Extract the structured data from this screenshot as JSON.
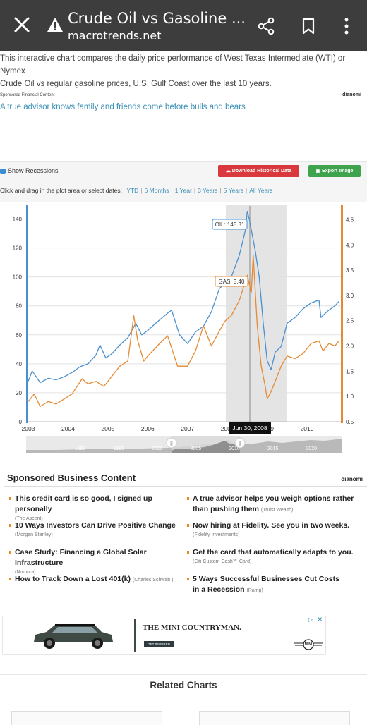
{
  "browser": {
    "title": "Crude Oil vs Gasoline ...",
    "domain": "macrotrends.net"
  },
  "intro": {
    "line1": "This interactive chart compares the daily price performance of West Texas Intermediate (WTI) or Nymex",
    "line2": "Crude Oil vs regular gasoline prices, U.S. Gulf Coast over the last 10 years."
  },
  "top_sponsor": {
    "label": "Sponsored Financial Content",
    "brand": "dianomi",
    "link": "A true advisor knows family and friends come before bulls and bears"
  },
  "toolbar": {
    "show_recessions": "Show Recessions",
    "download_label": "Download Historical Data",
    "export_label": "Export Image",
    "zoom_prompt": "Click and drag in the plot area or select dates:",
    "zoom_options": [
      "YTD",
      "6 Months",
      "1 Year",
      "3 Years",
      "5 Years",
      "All Years"
    ]
  },
  "chart_data": {
    "type": "line",
    "title": "",
    "x_ticks": [
      "2003",
      "2004",
      "2005",
      "2006",
      "2007",
      "2008",
      "2009",
      "2010"
    ],
    "y_left_ticks": [
      "0",
      "20",
      "40",
      "60",
      "80",
      "100",
      "120",
      "140"
    ],
    "y_right_ticks": [
      "0.5",
      "1.0",
      "1.5",
      "2.0",
      "2.5",
      "3.0",
      "3.5",
      "4.0",
      "4.5"
    ],
    "y_left_range": [
      0,
      150
    ],
    "y_right_range": [
      0.5,
      4.8
    ],
    "x_range": [
      2003.0,
      2010.85
    ],
    "recession_band": [
      2007.96,
      2009.5
    ],
    "series": [
      {
        "name": "Oil",
        "axis": "left",
        "color": "#4a90d0",
        "points": [
          [
            2003.0,
            28
          ],
          [
            2003.1,
            35
          ],
          [
            2003.2,
            31
          ],
          [
            2003.3,
            27
          ],
          [
            2003.5,
            30
          ],
          [
            2003.7,
            29
          ],
          [
            2003.9,
            31
          ],
          [
            2004.1,
            34
          ],
          [
            2004.3,
            38
          ],
          [
            2004.5,
            40
          ],
          [
            2004.7,
            46
          ],
          [
            2004.8,
            53
          ],
          [
            2004.95,
            44
          ],
          [
            2005.1,
            47
          ],
          [
            2005.3,
            53
          ],
          [
            2005.5,
            58
          ],
          [
            2005.7,
            68
          ],
          [
            2005.85,
            60
          ],
          [
            2006.0,
            63
          ],
          [
            2006.2,
            68
          ],
          [
            2006.5,
            75
          ],
          [
            2006.6,
            77
          ],
          [
            2006.8,
            60
          ],
          [
            2007.0,
            54
          ],
          [
            2007.2,
            62
          ],
          [
            2007.4,
            66
          ],
          [
            2007.6,
            76
          ],
          [
            2007.8,
            92
          ],
          [
            2007.95,
            96
          ],
          [
            2008.1,
            100
          ],
          [
            2008.3,
            115
          ],
          [
            2008.45,
            132
          ],
          [
            2008.5,
            145.31
          ],
          [
            2008.55,
            140
          ],
          [
            2008.7,
            118
          ],
          [
            2008.8,
            100
          ],
          [
            2008.9,
            68
          ],
          [
            2009.0,
            42
          ],
          [
            2009.1,
            36
          ],
          [
            2009.2,
            48
          ],
          [
            2009.35,
            52
          ],
          [
            2009.5,
            68
          ],
          [
            2009.7,
            72
          ],
          [
            2009.9,
            78
          ],
          [
            2010.1,
            82
          ],
          [
            2010.3,
            84
          ],
          [
            2010.35,
            72
          ],
          [
            2010.5,
            76
          ],
          [
            2010.7,
            80
          ],
          [
            2010.8,
            83
          ]
        ]
      },
      {
        "name": "Gas",
        "axis": "right",
        "color": "#e58a34",
        "points": [
          [
            2003.0,
            0.9
          ],
          [
            2003.15,
            1.05
          ],
          [
            2003.3,
            0.8
          ],
          [
            2003.5,
            0.9
          ],
          [
            2003.7,
            0.85
          ],
          [
            2003.9,
            0.95
          ],
          [
            2004.1,
            1.05
          ],
          [
            2004.35,
            1.35
          ],
          [
            2004.5,
            1.25
          ],
          [
            2004.7,
            1.3
          ],
          [
            2004.9,
            1.2
          ],
          [
            2005.1,
            1.4
          ],
          [
            2005.3,
            1.6
          ],
          [
            2005.5,
            1.7
          ],
          [
            2005.65,
            2.6
          ],
          [
            2005.75,
            2.1
          ],
          [
            2005.9,
            1.7
          ],
          [
            2006.0,
            1.8
          ],
          [
            2006.3,
            2.05
          ],
          [
            2006.5,
            2.2
          ],
          [
            2006.75,
            1.6
          ],
          [
            2007.0,
            1.6
          ],
          [
            2007.2,
            1.9
          ],
          [
            2007.4,
            2.4
          ],
          [
            2007.6,
            2.0
          ],
          [
            2007.8,
            2.3
          ],
          [
            2007.95,
            2.5
          ],
          [
            2008.1,
            2.6
          ],
          [
            2008.3,
            2.9
          ],
          [
            2008.5,
            3.4
          ],
          [
            2008.6,
            3.05
          ],
          [
            2008.65,
            3.8
          ],
          [
            2008.75,
            2.4
          ],
          [
            2008.85,
            1.6
          ],
          [
            2008.95,
            1.2
          ],
          [
            2009.0,
            0.95
          ],
          [
            2009.1,
            1.1
          ],
          [
            2009.2,
            1.3
          ],
          [
            2009.35,
            1.6
          ],
          [
            2009.5,
            1.8
          ],
          [
            2009.7,
            1.75
          ],
          [
            2009.9,
            1.85
          ],
          [
            2010.1,
            2.05
          ],
          [
            2010.3,
            2.1
          ],
          [
            2010.4,
            1.9
          ],
          [
            2010.55,
            2.05
          ],
          [
            2010.7,
            2.0
          ],
          [
            2010.8,
            2.1
          ]
        ]
      }
    ],
    "tooltips": {
      "oil": "OIL: 145.31",
      "gas": "GAS: 3.40",
      "date": "Jun 30, 2008"
    },
    "navigator": {
      "ticks": [
        "1990",
        "1995",
        "2000",
        "2005",
        "2010",
        "2015",
        "2020"
      ],
      "selection": [
        2003,
        2010
      ]
    }
  },
  "sponsored": {
    "heading": "Sponsored Business Content",
    "brand": "dianomi",
    "items": [
      {
        "title": "This credit card is so good, I signed up personally",
        "source": "(The Ascent)"
      },
      {
        "title": "A true advisor helps you weigh options rather than pushing them",
        "source": "(Truist Wealth)"
      },
      {
        "title": "10 Ways Investors Can Drive Positive Change",
        "source": "(Morgan Stanley)"
      },
      {
        "title": "Now hiring at Fidelity. See you in two weeks.",
        "source": "(Fidelity Investments)"
      },
      {
        "title": "Case Study: Financing a Global Solar Infrastructure",
        "source": "(Nomura)"
      },
      {
        "title": "Get the card that automatically adapts to you.",
        "source": "(Citi Custom Cash℠ Card)"
      },
      {
        "title": "How to Track Down a Lost 401(k)",
        "source": "(Charles Schwab )"
      },
      {
        "title": "5 Ways Successful Businesses Cut Costs in a Recession",
        "source": "(Ramp)"
      }
    ]
  },
  "mini_ad": {
    "headline": "THE MINI COUNTRYMAN.",
    "cta": "GET INSPIRED",
    "logo": "MINI"
  },
  "related": {
    "heading": "Related Charts"
  }
}
